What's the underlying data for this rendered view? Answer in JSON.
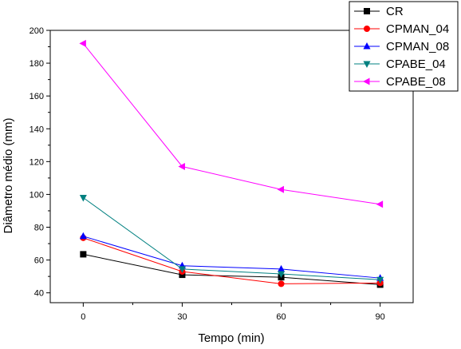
{
  "chart_data": {
    "type": "line",
    "title": "",
    "xlabel": "Tempo (min)",
    "ylabel": "Diâmetro médio (mm)",
    "x": [
      0,
      30,
      60,
      90
    ],
    "x_ticks": [
      "0",
      "30",
      "60",
      "90"
    ],
    "xlim": [
      -10,
      100
    ],
    "ylim": [
      34,
      200
    ],
    "y_ticks": [
      "40",
      "60",
      "80",
      "100",
      "120",
      "140",
      "160",
      "180",
      "200"
    ],
    "grid": false,
    "legend_position": "top-right",
    "series": [
      {
        "name": "CR",
        "values": [
          63.5,
          51,
          49.5,
          45
        ],
        "color": "#000000",
        "marker": "square"
      },
      {
        "name": "CPMAN_04",
        "values": [
          73.5,
          53,
          45.5,
          46
        ],
        "color": "#ff0000",
        "marker": "circle"
      },
      {
        "name": "CPMAN_08",
        "values": [
          74.5,
          56.5,
          54.5,
          49
        ],
        "color": "#0000ff",
        "marker": "triangle-up"
      },
      {
        "name": "CPABE_04",
        "values": [
          98,
          54.5,
          51.5,
          48
        ],
        "color": "#008080",
        "marker": "triangle-down"
      },
      {
        "name": "CPABE_08",
        "values": [
          192,
          117,
          103,
          94
        ],
        "color": "#ff00ff",
        "marker": "triangle-left"
      }
    ]
  }
}
